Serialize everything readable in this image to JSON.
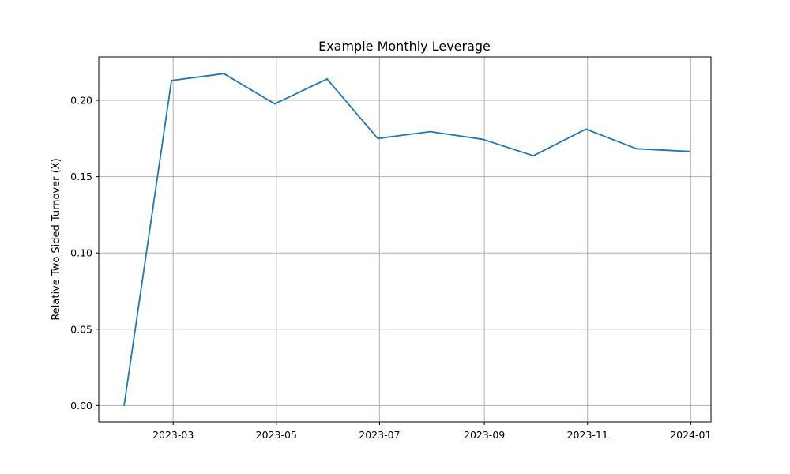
{
  "chart_data": {
    "type": "line",
    "title": "Example Monthly Leverage",
    "xlabel": "",
    "ylabel": "Relative Two Sided Turnover (X)",
    "x_axis_type": "date",
    "xlim": [
      "2023-01-16",
      "2024-01-13"
    ],
    "ylim": [
      -0.0107,
      0.2285
    ],
    "x_ticks": [
      "2023-03",
      "2023-05",
      "2023-07",
      "2023-09",
      "2023-11",
      "2024-01"
    ],
    "y_ticks": [
      "0.00",
      "0.05",
      "0.10",
      "0.15",
      "0.20"
    ],
    "grid": true,
    "legend": false,
    "series": [
      {
        "color": "#1f77b4",
        "points": [
          {
            "x": "2023-01-31",
            "y": 0.0
          },
          {
            "x": "2023-02-28",
            "y": 0.213
          },
          {
            "x": "2023-03-31",
            "y": 0.2175
          },
          {
            "x": "2023-04-30",
            "y": 0.1977
          },
          {
            "x": "2023-05-31",
            "y": 0.214
          },
          {
            "x": "2023-06-30",
            "y": 0.175
          },
          {
            "x": "2023-07-31",
            "y": 0.1795
          },
          {
            "x": "2023-08-31",
            "y": 0.1745
          },
          {
            "x": "2023-09-30",
            "y": 0.1637
          },
          {
            "x": "2023-10-31",
            "y": 0.1812
          },
          {
            "x": "2023-11-30",
            "y": 0.1683
          },
          {
            "x": "2023-12-31",
            "y": 0.1665
          }
        ]
      }
    ]
  }
}
